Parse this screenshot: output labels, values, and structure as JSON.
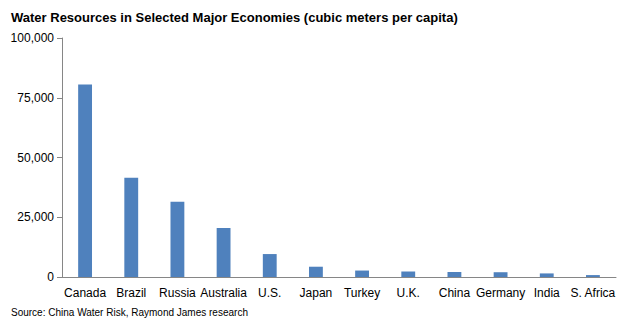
{
  "chart_data": {
    "type": "bar",
    "title": "Water Resources in Selected Major Economies (cubic meters per capita)",
    "source": "Source: China Water Risk, Raymond James research",
    "categories": [
      "Canada",
      "Brazil",
      "Russia",
      "Australia",
      "U.S.",
      "Japan",
      "Turkey",
      "U.K.",
      "China",
      "Germany",
      "India",
      "S. Africa"
    ],
    "values": [
      80500,
      41500,
      31500,
      20500,
      9600,
      4300,
      2700,
      2300,
      2100,
      2000,
      1500,
      800
    ],
    "color": "#4f81bd",
    "ylim": [
      0,
      100000
    ],
    "yticks": [
      0,
      {
        "value": 25000,
        "label": "25,000"
      },
      {
        "value": 50000,
        "label": "50,000"
      },
      {
        "value": 75000,
        "label": "75,000"
      },
      {
        "value": 100000,
        "label": "100,000"
      }
    ],
    "grid": false
  }
}
